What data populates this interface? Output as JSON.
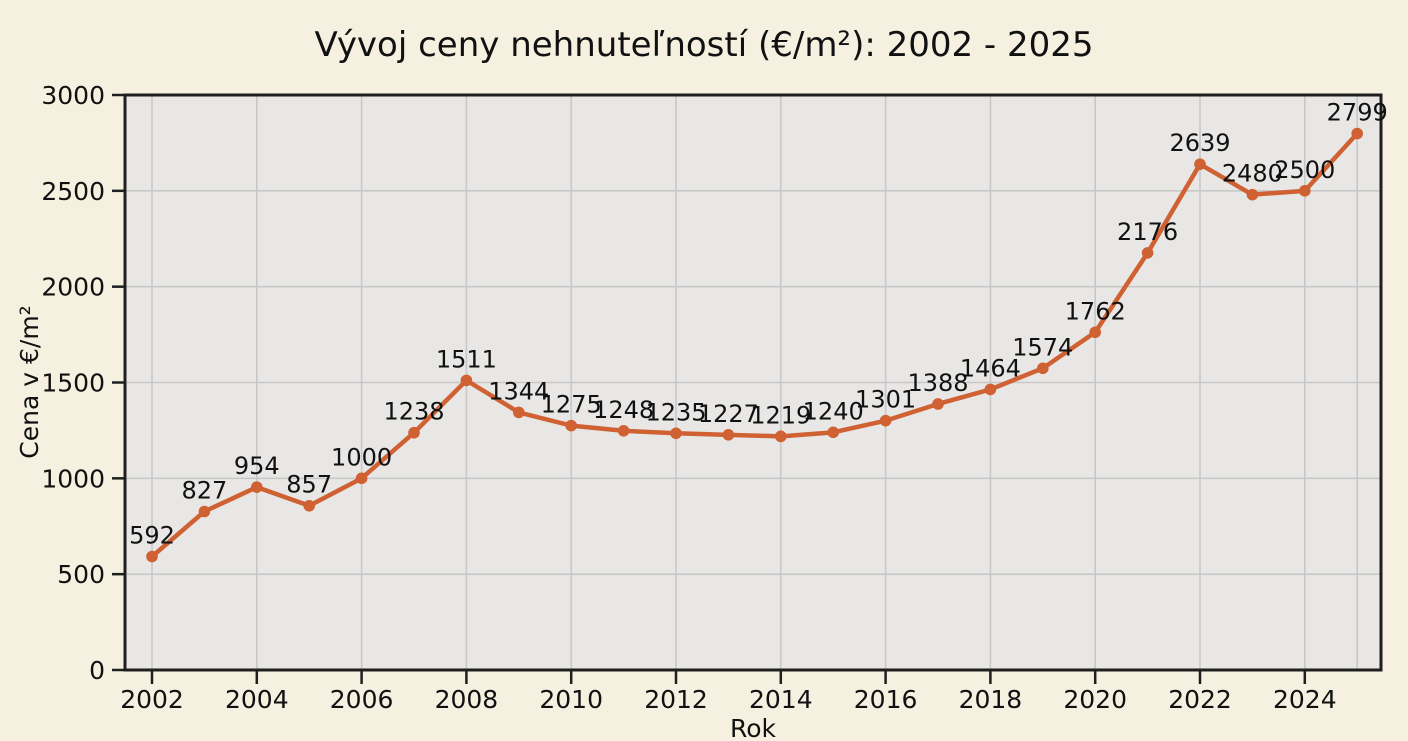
{
  "figure": {
    "title": "Vývoj ceny nehnuteľností (€/m²): 2002 - 2025",
    "xlabel": "Rok",
    "ylabel": "Cena v €/m²"
  },
  "colors": {
    "line": "#cf6132",
    "marker": "#cf6132",
    "page_background": "#f6f0e0",
    "plot_background": "#e8e7e5",
    "gridline": "#c8c8c8",
    "spine": "#1f1f1f",
    "text": "#111111"
  },
  "chart_data": {
    "type": "line",
    "title": "Vývoj ceny nehnuteľností (€/m²): 2002 - 2025",
    "xlabel": "Rok",
    "ylabel": "Cena v €/m²",
    "x": [
      2002,
      2003,
      2004,
      2005,
      2006,
      2007,
      2008,
      2009,
      2010,
      2011,
      2012,
      2013,
      2014,
      2015,
      2016,
      2017,
      2018,
      2019,
      2020,
      2021,
      2022,
      2023,
      2024,
      2025
    ],
    "series": [
      {
        "name": "Cena v €/m²",
        "values": [
          592,
          827,
          954,
          857,
          1000,
          1238,
          1511,
          1344,
          1275,
          1248,
          1235,
          1227,
          1219,
          1240,
          1301,
          1388,
          1464,
          1574,
          1762,
          2176,
          2639,
          2480,
          2500,
          2799
        ]
      }
    ],
    "point_labels_visible": true,
    "marker": "circle",
    "grid": true,
    "legend": "none",
    "ylim": [
      0,
      3000
    ],
    "yticks": [
      0,
      500,
      1000,
      1500,
      2000,
      2500,
      3000
    ],
    "xticks": [
      2002,
      2004,
      2006,
      2008,
      2010,
      2012,
      2014,
      2016,
      2018,
      2020,
      2022,
      2024
    ]
  }
}
